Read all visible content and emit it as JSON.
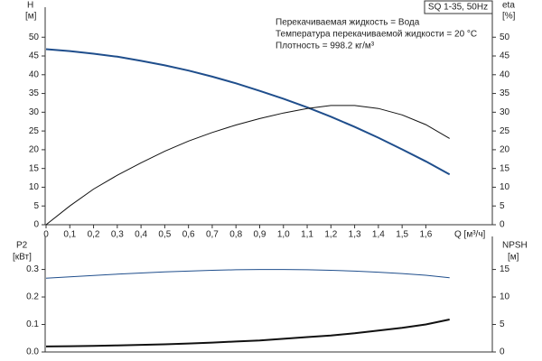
{
  "chart_data": [
    {
      "type": "line",
      "label": "SQ 1-35, 50Hz",
      "annotations": [
        "Перекачиваемая жидкость = Вода",
        "Температура перекачиваемой жидкости = 20 °C",
        "Плотность = 998.2 кг/м³"
      ],
      "y_label": "H",
      "y_unit": "[м]",
      "y2_label": "eta",
      "y2_unit": "[%]",
      "x_label": "Q [м³/ч]",
      "x": [
        0,
        0.1,
        0.2,
        0.3,
        0.4,
        0.5,
        0.6,
        0.7,
        0.8,
        0.9,
        1.0,
        1.1,
        1.2,
        1.3,
        1.4,
        1.5,
        1.6,
        1.7
      ],
      "series": [
        {
          "color": "#1f4e8c",
          "values": [
            46.8,
            46.3,
            45.6,
            44.8,
            43.7,
            42.5,
            41.1,
            39.5,
            37.7,
            35.7,
            33.6,
            31.3,
            28.8,
            26.1,
            23.2,
            20.1,
            16.9,
            13.4
          ]
        },
        {
          "color": "#111111",
          "axis": "y2",
          "values": [
            0,
            5,
            9.5,
            13.2,
            16.5,
            19.6,
            22.3,
            24.6,
            26.6,
            28.3,
            29.8,
            31,
            31.8,
            31.8,
            31,
            29.3,
            26.7,
            23
          ]
        }
      ],
      "xlim": [
        0,
        1.88
      ],
      "xticks": [
        0,
        {
          "value": 0.1,
          "label": "0,1"
        },
        {
          "value": 0.2,
          "label": "0,2"
        },
        {
          "value": 0.3,
          "label": "0,3"
        },
        {
          "value": 0.4,
          "label": "0,4"
        },
        {
          "value": 0.5,
          "label": "0,5"
        },
        {
          "value": 0.6,
          "label": "0,6"
        },
        {
          "value": 0.7,
          "label": "0,7"
        },
        {
          "value": 0.8,
          "label": "0,8"
        },
        {
          "value": 0.9,
          "label": "0,9"
        },
        {
          "value": 1.0,
          "label": "1,0"
        },
        {
          "value": 1.1,
          "label": "1,1"
        },
        {
          "value": 1.2,
          "label": "1,2"
        },
        {
          "value": 1.3,
          "label": "1,3"
        },
        {
          "value": 1.4,
          "label": "1,4"
        },
        {
          "value": 1.5,
          "label": "1,5"
        },
        {
          "value": 1.6,
          "label": "1,6"
        }
      ],
      "ylim": [
        0,
        58
      ],
      "yticks": [
        0,
        5,
        10,
        15,
        20,
        25,
        30,
        35,
        40,
        45,
        50
      ],
      "y2lim": [
        0,
        58
      ],
      "y2ticks": [
        0,
        5,
        10,
        15,
        20,
        25,
        30,
        35,
        40,
        45,
        50
      ]
    },
    {
      "type": "line",
      "y_label": "P2",
      "y_unit": "[кВт]",
      "y2_label": "NPSH",
      "y2_unit": "[м]",
      "x": [
        0,
        0.1,
        0.2,
        0.3,
        0.4,
        0.5,
        0.6,
        0.7,
        0.8,
        0.9,
        1.0,
        1.1,
        1.2,
        1.3,
        1.4,
        1.5,
        1.6,
        1.7
      ],
      "series": [
        {
          "color": "#1f4e8c",
          "values": [
            0.268,
            0.273,
            0.278,
            0.283,
            0.287,
            0.291,
            0.294,
            0.297,
            0.299,
            0.3,
            0.3,
            0.299,
            0.297,
            0.294,
            0.29,
            0.285,
            0.279,
            0.27
          ]
        },
        {
          "color": "#111111",
          "axis": "y2",
          "values": [
            1.0,
            1.05,
            1.1,
            1.2,
            1.3,
            1.4,
            1.55,
            1.7,
            1.9,
            2.1,
            2.4,
            2.7,
            3.0,
            3.4,
            3.9,
            4.4,
            5.0,
            5.9
          ]
        }
      ],
      "xlim": [
        0,
        1.88
      ],
      "ylim": [
        0,
        0.42
      ],
      "yticks": [
        {
          "value": 0,
          "label": "0.0"
        },
        0.1,
        0.2,
        0.3
      ],
      "y2lim": [
        0,
        21
      ],
      "y2ticks": [
        0,
        5,
        10,
        15
      ]
    }
  ]
}
